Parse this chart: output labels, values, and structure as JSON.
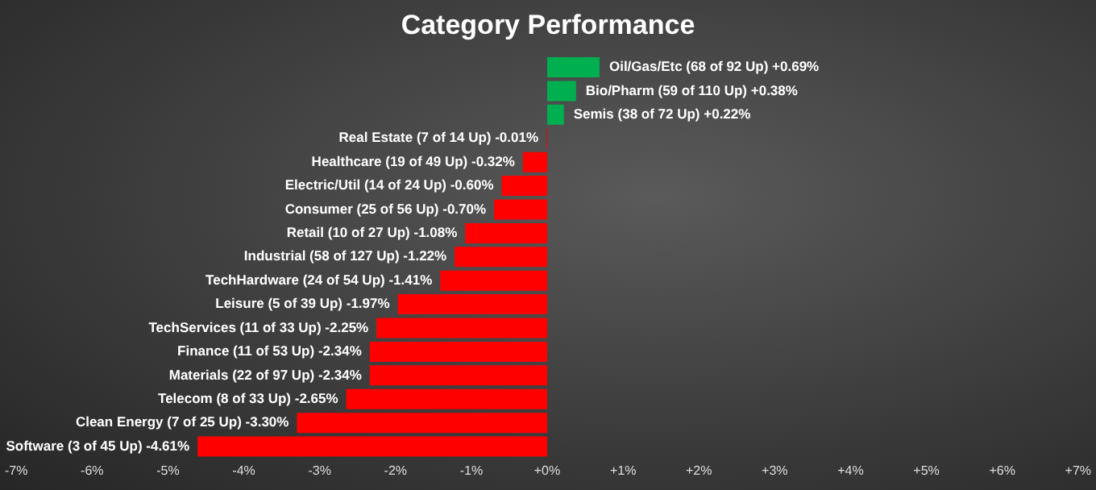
{
  "chart_data": {
    "type": "bar",
    "orientation": "horizontal",
    "title": "Category Performance",
    "categories": [
      "Oil/Gas/Etc (68 of 92 Up) +0.69%",
      "Bio/Pharm (59 of 110 Up) +0.38%",
      "Semis (38 of 72 Up) +0.22%",
      "Real Estate (7 of 14 Up) -0.01%",
      "Healthcare (19 of 49 Up) -0.32%",
      "Electric/Util (14 of 24 Up) -0.60%",
      "Consumer (25 of 56 Up) -0.70%",
      "Retail (10 of 27 Up) -1.08%",
      "Industrial (58 of 127 Up) -1.22%",
      "TechHardware (24 of 54 Up) -1.41%",
      "Leisure (5 of 39 Up) -1.97%",
      "TechServices (11 of 33 Up) -2.25%",
      "Finance (11 of 53 Up) -2.34%",
      "Materials (22 of 97 Up) -2.34%",
      "Telecom (8 of 33 Up) -2.65%",
      "Clean Energy (7 of 25 Up) -3.30%",
      "Software (3 of 45 Up) -4.61%"
    ],
    "values": [
      0.69,
      0.38,
      0.22,
      -0.01,
      -0.32,
      -0.6,
      -0.7,
      -1.08,
      -1.22,
      -1.41,
      -1.97,
      -2.25,
      -2.34,
      -2.34,
      -2.65,
      -3.3,
      -4.61
    ],
    "colors": [
      "#00b050",
      "#00b050",
      "#00b050",
      "#ff0000",
      "#ff0000",
      "#ff0000",
      "#ff0000",
      "#ff0000",
      "#ff0000",
      "#ff0000",
      "#ff0000",
      "#ff0000",
      "#ff0000",
      "#ff0000",
      "#ff0000",
      "#ff0000",
      "#ff0000"
    ],
    "xlim": [
      -7,
      7
    ],
    "xticks": [
      {
        "value": -7,
        "label": "-7%"
      },
      {
        "value": -6,
        "label": "-6%"
      },
      {
        "value": -5,
        "label": "-5%"
      },
      {
        "value": -4,
        "label": "-4%"
      },
      {
        "value": -3,
        "label": "-3%"
      },
      {
        "value": -2,
        "label": "-2%"
      },
      {
        "value": -1,
        "label": "-1%"
      },
      {
        "value": 0,
        "label": "+0%"
      },
      {
        "value": 1,
        "label": "+1%"
      },
      {
        "value": 2,
        "label": "+2%"
      },
      {
        "value": 3,
        "label": "+3%"
      },
      {
        "value": 4,
        "label": "+4%"
      },
      {
        "value": 5,
        "label": "+5%"
      },
      {
        "value": 6,
        "label": "+6%"
      },
      {
        "value": 7,
        "label": "+7%"
      }
    ],
    "grid": false,
    "legend": false
  }
}
